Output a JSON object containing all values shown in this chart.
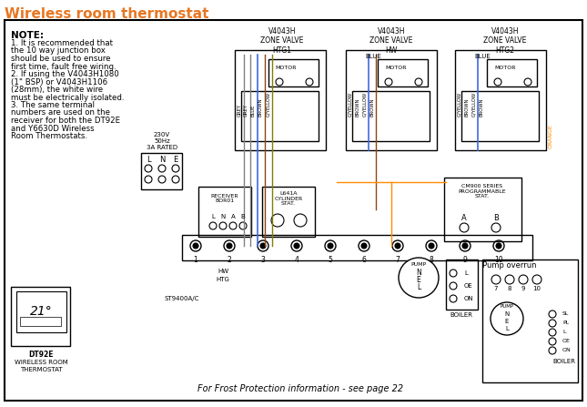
{
  "title": "Wireless room thermostat",
  "title_color": "#E87722",
  "bg_color": "#ffffff",
  "border_color": "#000000",
  "note_text": "NOTE:",
  "note_lines": [
    "1. It is recommended that",
    "the 10 way junction box",
    "should be used to ensure",
    "first time, fault free wiring.",
    "2. If using the V4043H1080",
    "(1\" BSP) or V4043H1106",
    "(28mm), the white wire",
    "must be electrically isolated.",
    "3. The same terminal",
    "numbers are used on the",
    "receiver for both the DT92E",
    "and Y6630D Wireless",
    "Room Thermostats."
  ],
  "zone_valve_labels": [
    "V4043H\nZONE VALVE\nHTG1",
    "V4043H\nZONE VALVE\nHW",
    "V4043H\nZONE VALVE\nHTG2"
  ],
  "frost_text": "For Frost Protection information - see page 22",
  "pump_overrun_text": "Pump overrun",
  "dt92e_lines": [
    "DT92E",
    "WIRELESS ROOM",
    "THERMOSTAT"
  ],
  "wire_colors": {
    "grey": "#808080",
    "blue": "#4169E1",
    "brown": "#8B4513",
    "gyellow": "#808000",
    "orange": "#FF8C00"
  },
  "mains_text": "230V\n50Hz\n3A RATED",
  "lne_labels": [
    "L",
    "N",
    "E"
  ],
  "boiler_labels": [
    "L",
    "OE",
    "ON"
  ],
  "boiler_pump_labels": [
    "SL",
    "PL",
    "L",
    "OE",
    "ON"
  ],
  "terminal_count": 10,
  "receiver_label": "RECEIVER\nBOR01",
  "cylinder_stat_label": "L641A\nCYLINDER\nSTAT.",
  "cm900_label": "CM900 SERIES\nPROGRAMMABLE\nSTAT.",
  "hw_htg_labels": [
    "HW",
    "HTG"
  ],
  "pump_labels": [
    "N",
    "E",
    "L"
  ],
  "st9400_label": "ST9400A/C"
}
